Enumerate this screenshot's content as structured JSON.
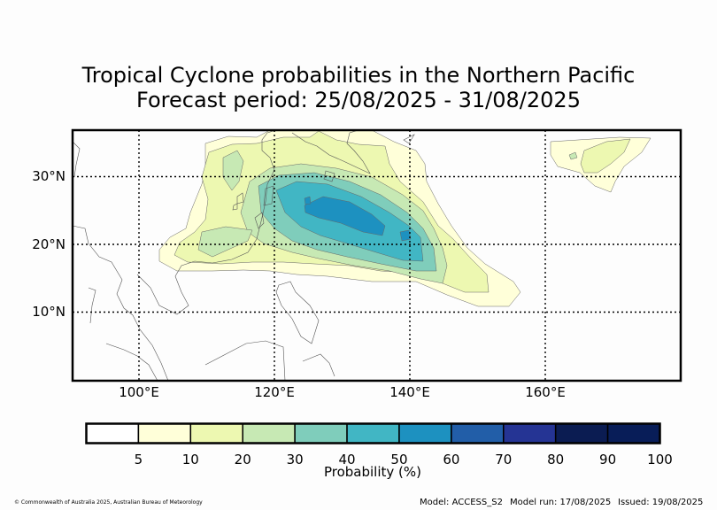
{
  "title_line1": "Tropical Cyclone probabilities in the Northern Pacific",
  "title_line2": "Forecast period: 25/08/2025 - 31/08/2025",
  "map": {
    "lat_labels": [
      "30°N",
      "20°N",
      "10°N"
    ],
    "lon_labels": [
      "100°E",
      "120°E",
      "140°E",
      "160°E"
    ],
    "lat_values": [
      30,
      20,
      10
    ],
    "lon_values": [
      100,
      120,
      140,
      160
    ],
    "extent": {
      "lon_min": 90,
      "lon_max": 180,
      "lat_min": 0,
      "lat_max": 37
    }
  },
  "colorbar": {
    "label": "Probability (%)",
    "ticks": [
      "5",
      "10",
      "20",
      "30",
      "40",
      "50",
      "60",
      "70",
      "80",
      "90",
      "100"
    ],
    "colors": [
      "#ffffff",
      "#ffffd9",
      "#edf8b1",
      "#c7e9b4",
      "#7fcdbb",
      "#41b6c4",
      "#1d91c0",
      "#225ea8",
      "#253494",
      "#0b1c52",
      "#081d58"
    ]
  },
  "footer": {
    "copyright": "© Commonwealth of Australia 2025, Australian Bureau of Meteorology",
    "model": "Model: ACCESS_S2",
    "model_run": "Model run: 17/08/2025",
    "issued": "Issued: 19/08/2025"
  },
  "colors": {
    "level5": "#ffffd9",
    "level10": "#edf8b1",
    "level20": "#c7e9b4",
    "level30": "#7fcdbb",
    "level40": "#41b6c4",
    "level50": "#1d91c0"
  }
}
